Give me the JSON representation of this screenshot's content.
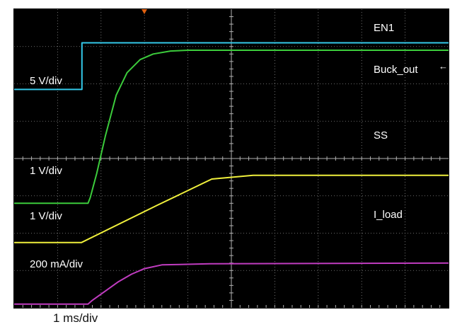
{
  "chart_data": {
    "type": "line",
    "title": "",
    "timebase": "1 ms/div",
    "grid": true,
    "x_divisions": 10,
    "y_divisions": 8,
    "background": "#000000",
    "trigger_marker_color": "#e06010",
    "series": [
      {
        "name": "EN1",
        "scale": "5 V/div",
        "color": "#33c8e8",
        "points": [
          [
            0,
            2.15
          ],
          [
            1.56,
            2.15
          ],
          [
            1.56,
            0.9
          ],
          [
            10,
            0.9
          ]
        ]
      },
      {
        "name": "Buck_out",
        "scale": "1 V/div",
        "color": "#3ccc3c",
        "points": [
          [
            0,
            5.2
          ],
          [
            1.7,
            5.2
          ],
          [
            1.75,
            5.05
          ],
          [
            1.9,
            4.4
          ],
          [
            2.1,
            3.4
          ],
          [
            2.35,
            2.3
          ],
          [
            2.6,
            1.7
          ],
          [
            2.9,
            1.35
          ],
          [
            3.2,
            1.2
          ],
          [
            3.6,
            1.12
          ],
          [
            4.0,
            1.1
          ],
          [
            10,
            1.1
          ]
        ]
      },
      {
        "name": "SS",
        "scale": "1 V/div",
        "color": "#f0f03c",
        "points": [
          [
            0,
            6.25
          ],
          [
            1.55,
            6.25
          ],
          [
            3.3,
            5.25
          ],
          [
            4.55,
            4.55
          ],
          [
            5.5,
            4.45
          ],
          [
            10,
            4.45
          ]
        ]
      },
      {
        "name": "I_load",
        "scale": "200 mA/div",
        "color": "#c03cc0",
        "points": [
          [
            0,
            7.9
          ],
          [
            1.7,
            7.9
          ],
          [
            1.8,
            7.8
          ],
          [
            2.1,
            7.55
          ],
          [
            2.4,
            7.3
          ],
          [
            2.7,
            7.1
          ],
          [
            3.0,
            6.95
          ],
          [
            3.4,
            6.85
          ],
          [
            4.5,
            6.82
          ],
          [
            10,
            6.8
          ]
        ]
      }
    ],
    "trace_labels": [
      "EN1",
      "Buck_out",
      "SS",
      "I_load"
    ],
    "scale_labels": [
      "5 V/div",
      "1 V/div",
      "1 V/div",
      "200 mA/div"
    ],
    "annotation_arrow": "←"
  }
}
